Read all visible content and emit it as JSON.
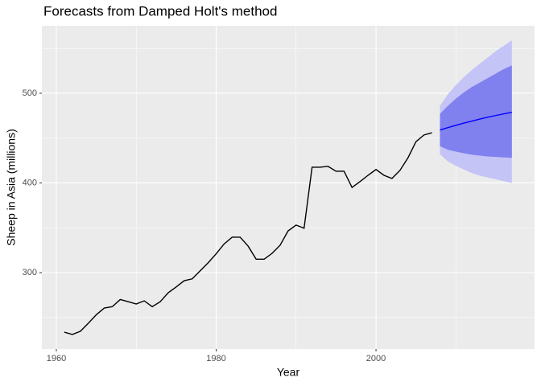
{
  "chart_data": {
    "type": "line",
    "title": "Forecasts from Damped Holt's method",
    "xlabel": "Year",
    "ylabel": "Sheep in Asia (millions)",
    "xlim": [
      1958.19,
      2019.84
    ],
    "ylim": [
      214.8,
      575.3
    ],
    "xticks": [
      1960,
      1980,
      2000
    ],
    "yticks": [
      300,
      400,
      500
    ],
    "grid": true,
    "series": [
      {
        "color": "#000000",
        "x": [
          1961,
          1962,
          1963,
          1964,
          1965,
          1966,
          1967,
          1968,
          1969,
          1970,
          1971,
          1972,
          1973,
          1974,
          1975,
          1976,
          1977,
          1978,
          1979,
          1980,
          1981,
          1982,
          1983,
          1984,
          1985,
          1986,
          1987,
          1988,
          1989,
          1990,
          1991,
          1992,
          1993,
          1994,
          1995,
          1996,
          1997,
          1998,
          1999,
          2000,
          2001,
          2002,
          2003,
          2004,
          2005,
          2006,
          2007
        ],
        "values": [
          233.6,
          231,
          234.5,
          243.5,
          253,
          260.5,
          262,
          270,
          267.5,
          265,
          268.5,
          262,
          267.5,
          277.5,
          284,
          291,
          293,
          302,
          311,
          321,
          332,
          339.5,
          339.5,
          329.5,
          315,
          315,
          321.5,
          330.5,
          346.5,
          353,
          349.5,
          417.5,
          417.5,
          418.5,
          413,
          413,
          395,
          401.5,
          408.5,
          415,
          408.5,
          405,
          414,
          428,
          446,
          453.5,
          456
        ]
      },
      {
        "color": "#0000ff",
        "x": [
          2008,
          2009,
          2010,
          2011,
          2012,
          2013,
          2014,
          2015,
          2016,
          2017
        ],
        "values": [
          459,
          461.7,
          464.3,
          466.7,
          469,
          471.2,
          473.3,
          475.2,
          477,
          478.7
        ]
      }
    ],
    "intervals": [
      {
        "color": "#c4c4f6",
        "lower": [
          432,
          424,
          419,
          415,
          411,
          408,
          406,
          404,
          402,
          400
        ],
        "upper": [
          486,
          499,
          509,
          518,
          526,
          533,
          540,
          547,
          553,
          559
        ]
      },
      {
        "color": "#8080ee",
        "lower": [
          441,
          437,
          435,
          433,
          431.5,
          430.5,
          429.5,
          429,
          428.5,
          428
        ],
        "upper": [
          477,
          486,
          494,
          501,
          507,
          512,
          517,
          522,
          527,
          531
        ]
      }
    ]
  }
}
